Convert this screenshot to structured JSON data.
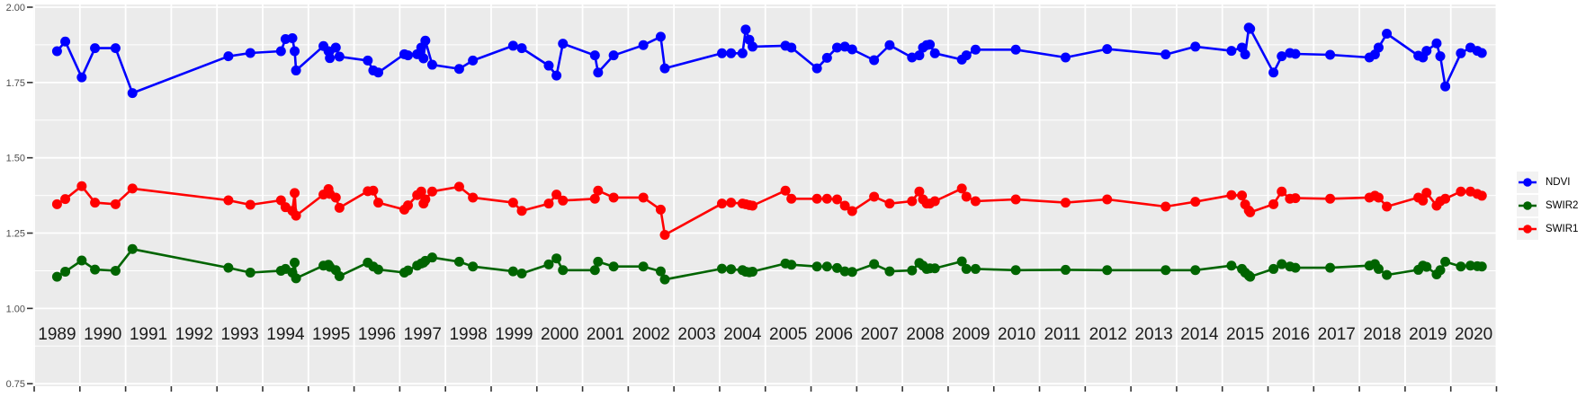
{
  "figure": {
    "title": "",
    "y_axis": {
      "tick_labels": [
        "2.00",
        "1.75",
        "1.50",
        "1.25",
        "1.00",
        "0.75"
      ],
      "tick_values": [
        2.0,
        1.75,
        1.5,
        1.25,
        1.0,
        0.75
      ],
      "minor_values": [
        1.875,
        1.625,
        1.375,
        1.125,
        0.875
      ]
    },
    "x_axis": {
      "year_labels": [
        "1989",
        "1990",
        "1991",
        "1992",
        "1993",
        "1994",
        "1995",
        "1996",
        "1997",
        "1998",
        "1999",
        "2000",
        "2001",
        "2002",
        "2003",
        "2004",
        "2005",
        "2006",
        "2007",
        "2008",
        "2009",
        "2010",
        "2011",
        "2012",
        "2013",
        "2014",
        "2015",
        "2016",
        "2017",
        "2018",
        "2019",
        "2020"
      ]
    },
    "colors": {
      "panel_bg": "#EBEBEB",
      "grid": "#FFFFFF",
      "axis_text": "#4D4D4D",
      "year_text": "#1A1A1A",
      "tick": "#333333",
      "legend_key_bg": "#F2F2F2",
      "ndvi": "#0000FF",
      "swir2": "#006400",
      "swir1": "#FF0000"
    },
    "legend": {
      "position": "right",
      "entries": [
        {
          "label": "NDVI",
          "color": "#0000FF"
        },
        {
          "label": "SWIR2",
          "color": "#006400"
        },
        {
          "label": "SWIR1",
          "color": "#FF0000"
        }
      ]
    }
  },
  "chart_data": {
    "type": "line",
    "title": "",
    "xlabel": "",
    "ylabel": "",
    "grid": true,
    "legend_position": "right",
    "xlim": [
      1988.98,
      2021.01
    ],
    "ylim": [
      0.75,
      2.0
    ],
    "x": [
      1989.5,
      1989.68,
      1990.04,
      1990.33,
      1990.78,
      1991.15,
      1993.25,
      1993.73,
      1994.4,
      1994.5,
      1994.65,
      1994.7,
      1994.73,
      1995.33,
      1995.44,
      1995.47,
      1995.6,
      1995.68,
      1996.3,
      1996.42,
      1996.53,
      1997.1,
      1997.18,
      1997.38,
      1997.47,
      1997.52,
      1997.56,
      1997.71,
      1998.3,
      1998.6,
      1999.48,
      1999.67,
      2000.26,
      2000.43,
      2000.57,
      2001.27,
      2001.34,
      2001.68,
      2002.33,
      2002.71,
      2002.8,
      2004.05,
      2004.25,
      2004.5,
      2004.57,
      2004.65,
      2004.72,
      2005.44,
      2005.57,
      2006.13,
      2006.35,
      2006.57,
      2006.74,
      2006.9,
      2007.38,
      2007.72,
      2008.21,
      2008.37,
      2008.45,
      2008.53,
      2008.6,
      2008.71,
      2009.3,
      2009.4,
      2009.6,
      2010.48,
      2011.57,
      2012.48,
      2013.76,
      2014.41,
      2015.2,
      2015.43,
      2015.5,
      2015.58,
      2015.61,
      2016.12,
      2016.3,
      2016.48,
      2016.6,
      2017.36,
      2018.22,
      2018.34,
      2018.42,
      2018.6,
      2019.29,
      2019.39,
      2019.47,
      2019.69,
      2019.77,
      2019.88,
      2020.22,
      2020.43,
      2020.58,
      2020.68
    ],
    "series": [
      {
        "name": "NDVI",
        "color": "#0000FF",
        "values": [
          1.854,
          1.886,
          1.767,
          1.864,
          1.864,
          1.715,
          1.837,
          1.848,
          1.854,
          1.894,
          1.897,
          1.854,
          1.79,
          1.871,
          1.854,
          1.831,
          1.866,
          1.836,
          1.823,
          1.79,
          1.783,
          1.844,
          1.84,
          1.844,
          1.866,
          1.83,
          1.889,
          1.809,
          1.795,
          1.823,
          1.872,
          1.864,
          1.806,
          1.773,
          1.879,
          1.84,
          1.783,
          1.84,
          1.874,
          1.902,
          1.797,
          1.847,
          1.847,
          1.847,
          1.926,
          1.892,
          1.869,
          1.872,
          1.866,
          1.797,
          1.832,
          1.866,
          1.869,
          1.86,
          1.824,
          1.874,
          1.833,
          1.84,
          1.866,
          1.874,
          1.876,
          1.847,
          1.826,
          1.84,
          1.859,
          1.859,
          1.833,
          1.861,
          1.843,
          1.869,
          1.855,
          1.866,
          1.843,
          1.932,
          1.928,
          1.783,
          1.837,
          1.848,
          1.845,
          1.842,
          1.833,
          1.843,
          1.866,
          1.912,
          1.839,
          1.833,
          1.855,
          1.88,
          1.837,
          1.737,
          1.847,
          1.866,
          1.855,
          1.848
        ]
      },
      {
        "name": "SWIR2",
        "color": "#006400",
        "values": [
          1.105,
          1.122,
          1.159,
          1.129,
          1.125,
          1.197,
          1.135,
          1.119,
          1.125,
          1.131,
          1.119,
          1.152,
          1.1,
          1.142,
          1.145,
          1.138,
          1.127,
          1.107,
          1.152,
          1.139,
          1.129,
          1.119,
          1.126,
          1.142,
          1.149,
          1.152,
          1.158,
          1.169,
          1.155,
          1.139,
          1.123,
          1.116,
          1.146,
          1.166,
          1.127,
          1.127,
          1.155,
          1.139,
          1.139,
          1.123,
          1.096,
          1.132,
          1.13,
          1.127,
          1.122,
          1.12,
          1.122,
          1.149,
          1.145,
          1.139,
          1.139,
          1.134,
          1.123,
          1.121,
          1.147,
          1.123,
          1.126,
          1.151,
          1.142,
          1.131,
          1.133,
          1.133,
          1.156,
          1.131,
          1.131,
          1.127,
          1.128,
          1.127,
          1.127,
          1.127,
          1.142,
          1.131,
          1.119,
          1.109,
          1.105,
          1.131,
          1.147,
          1.139,
          1.135,
          1.135,
          1.142,
          1.147,
          1.131,
          1.111,
          1.128,
          1.142,
          1.138,
          1.113,
          1.127,
          1.155,
          1.139,
          1.142,
          1.14,
          1.139
        ]
      },
      {
        "name": "SWIR1",
        "color": "#FF0000",
        "values": [
          1.346,
          1.363,
          1.406,
          1.351,
          1.346,
          1.398,
          1.359,
          1.344,
          1.359,
          1.336,
          1.324,
          1.383,
          1.308,
          1.378,
          1.396,
          1.38,
          1.368,
          1.334,
          1.389,
          1.391,
          1.351,
          1.328,
          1.342,
          1.376,
          1.388,
          1.348,
          1.362,
          1.388,
          1.404,
          1.368,
          1.351,
          1.324,
          1.348,
          1.378,
          1.358,
          1.364,
          1.391,
          1.368,
          1.368,
          1.328,
          1.244,
          1.348,
          1.351,
          1.348,
          1.346,
          1.343,
          1.341,
          1.391,
          1.364,
          1.364,
          1.364,
          1.362,
          1.341,
          1.323,
          1.371,
          1.348,
          1.356,
          1.388,
          1.362,
          1.348,
          1.348,
          1.356,
          1.398,
          1.371,
          1.356,
          1.362,
          1.351,
          1.362,
          1.338,
          1.354,
          1.376,
          1.375,
          1.345,
          1.325,
          1.319,
          1.346,
          1.388,
          1.364,
          1.366,
          1.364,
          1.368,
          1.374,
          1.368,
          1.338,
          1.368,
          1.358,
          1.384,
          1.341,
          1.356,
          1.364,
          1.388,
          1.388,
          1.38,
          1.374
        ]
      }
    ]
  }
}
